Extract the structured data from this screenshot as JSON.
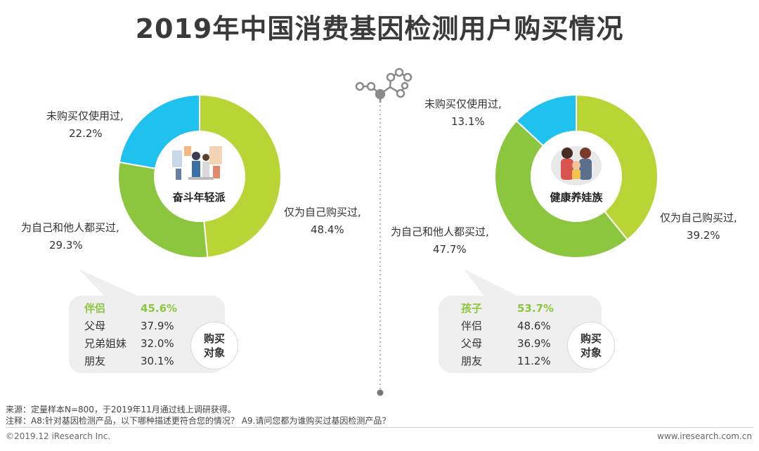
{
  "title": "2019年中国消费基因检测用户购买情况",
  "colors": {
    "self_only": "#b8d435",
    "self_and_others": "#8cc63e",
    "used_only": "#1fc2ef",
    "highlight_text": "#8dc63f",
    "bubble_bg": "#efefef"
  },
  "chart_data": [
    {
      "type": "pie",
      "variant": "donut",
      "center_label": "奋斗年轻派",
      "categories": [
        "仅为自己购买过",
        "为自己和他人都买过",
        "未购买仅使用过"
      ],
      "values": [
        48.4,
        29.3,
        22.2
      ],
      "labels": [
        {
          "name": "仅为自己购买过,",
          "value": "48.4%"
        },
        {
          "name": "为自己和他人都买过,",
          "value": "29.3%"
        },
        {
          "name": "未购买仅使用过,",
          "value": "22.2%"
        }
      ]
    },
    {
      "type": "pie",
      "variant": "donut",
      "center_label": "健康养娃族",
      "categories": [
        "仅为自己购买过",
        "为自己和他人都买过",
        "未购买仅使用过"
      ],
      "values": [
        39.2,
        47.7,
        13.1
      ],
      "labels": [
        {
          "name": "仅为自己购买过,",
          "value": "39.2%"
        },
        {
          "name": "为自己和他人都买过,",
          "value": "47.7%"
        },
        {
          "name": "未购买仅使用过,",
          "value": "13.1%"
        }
      ]
    }
  ],
  "purchase_targets": [
    {
      "badge_line1": "购买",
      "badge_line2": "对象",
      "rows": [
        {
          "name": "伴侣",
          "value": "45.6%"
        },
        {
          "name": "父母",
          "value": "37.9%"
        },
        {
          "name": "兄弟姐妹",
          "value": "32.0%"
        },
        {
          "name": "朋友",
          "value": "30.1%"
        }
      ]
    },
    {
      "badge_line1": "购买",
      "badge_line2": "对象",
      "rows": [
        {
          "name": "孩子",
          "value": "53.7%"
        },
        {
          "name": "伴侣",
          "value": "48.6%"
        },
        {
          "name": "父母",
          "value": "36.9%"
        },
        {
          "name": "朋友",
          "value": "11.2%"
        }
      ]
    }
  ],
  "notes": {
    "source": "来源：定量样本N=800，于2019年11月通过线上调研获得。",
    "annotation": "注释：A8:针对基因检测产品，以下哪种描述更符合您的情况？ A9.请问您都为谁购买过基因检测产品？"
  },
  "footer": {
    "left": "©2019.12 iResearch Inc.",
    "right": "www.iresearch.com.cn"
  }
}
